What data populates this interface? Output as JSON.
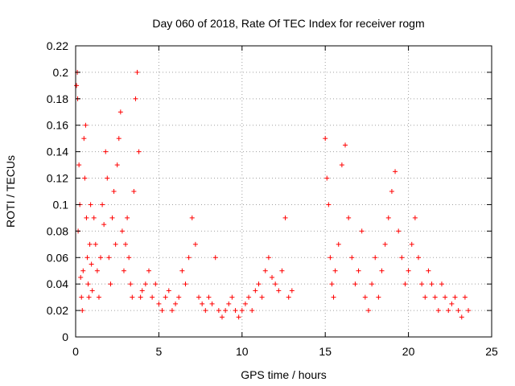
{
  "chart_data": {
    "type": "scatter",
    "title": "Day 060 of 2018, Rate Of TEC Index for receiver rogm",
    "xlabel": "GPS time / hours",
    "ylabel": "ROTI / TECUs",
    "xlim": [
      0,
      25
    ],
    "ylim": [
      0,
      0.22
    ],
    "xticks": [
      0,
      5,
      10,
      15,
      20,
      25
    ],
    "xtick_labels": [
      "0",
      "5",
      "10",
      "15",
      "20",
      "25"
    ],
    "yticks": [
      0,
      0.02,
      0.04,
      0.06,
      0.08,
      0.1,
      0.12,
      0.14,
      0.16,
      0.18,
      0.2,
      0.22
    ],
    "ytick_labels": [
      "0",
      "0.02",
      "0.04",
      "0.06",
      "0.08",
      "0.1",
      "0.12",
      "0.14",
      "0.16",
      "0.18",
      "0.2",
      "0.22"
    ],
    "grid": true,
    "legend": "none",
    "marker": "+",
    "color": "#ff0000",
    "series": [
      {
        "values": [
          [
            0.05,
            0.19
          ],
          [
            0.1,
            0.2
          ],
          [
            0.12,
            0.18
          ],
          [
            0.15,
            0.08
          ],
          [
            0.2,
            0.13
          ],
          [
            0.25,
            0.1
          ],
          [
            0.3,
            0.045
          ],
          [
            0.35,
            0.03
          ],
          [
            0.4,
            0.02
          ],
          [
            0.45,
            0.05
          ],
          [
            0.5,
            0.15
          ],
          [
            0.55,
            0.12
          ],
          [
            0.6,
            0.16
          ],
          [
            0.65,
            0.09
          ],
          [
            0.7,
            0.06
          ],
          [
            0.75,
            0.04
          ],
          [
            0.8,
            0.03
          ],
          [
            0.85,
            0.07
          ],
          [
            0.9,
            0.1
          ],
          [
            0.95,
            0.055
          ],
          [
            1.0,
            0.035
          ],
          [
            1.1,
            0.09
          ],
          [
            1.2,
            0.07
          ],
          [
            1.3,
            0.05
          ],
          [
            1.4,
            0.03
          ],
          [
            1.5,
            0.06
          ],
          [
            1.6,
            0.1
          ],
          [
            1.7,
            0.085
          ],
          [
            1.8,
            0.14
          ],
          [
            1.9,
            0.12
          ],
          [
            2.0,
            0.06
          ],
          [
            2.1,
            0.04
          ],
          [
            2.2,
            0.09
          ],
          [
            2.3,
            0.11
          ],
          [
            2.4,
            0.07
          ],
          [
            2.5,
            0.13
          ],
          [
            2.6,
            0.15
          ],
          [
            2.7,
            0.17
          ],
          [
            2.8,
            0.08
          ],
          [
            2.9,
            0.05
          ],
          [
            3.0,
            0.07
          ],
          [
            3.1,
            0.09
          ],
          [
            3.2,
            0.06
          ],
          [
            3.3,
            0.04
          ],
          [
            3.4,
            0.03
          ],
          [
            3.5,
            0.11
          ],
          [
            3.6,
            0.18
          ],
          [
            3.7,
            0.2
          ],
          [
            3.8,
            0.14
          ],
          [
            3.9,
            0.03
          ],
          [
            4.0,
            0.035
          ],
          [
            4.2,
            0.04
          ],
          [
            4.4,
            0.05
          ],
          [
            4.6,
            0.03
          ],
          [
            4.8,
            0.04
          ],
          [
            5.0,
            0.025
          ],
          [
            5.2,
            0.02
          ],
          [
            5.4,
            0.03
          ],
          [
            5.6,
            0.035
          ],
          [
            5.8,
            0.02
          ],
          [
            6.0,
            0.025
          ],
          [
            6.2,
            0.03
          ],
          [
            6.4,
            0.05
          ],
          [
            6.6,
            0.04
          ],
          [
            6.8,
            0.06
          ],
          [
            7.0,
            0.09
          ],
          [
            7.2,
            0.07
          ],
          [
            7.4,
            0.03
          ],
          [
            7.6,
            0.025
          ],
          [
            7.8,
            0.02
          ],
          [
            8.0,
            0.03
          ],
          [
            8.2,
            0.025
          ],
          [
            8.4,
            0.06
          ],
          [
            8.6,
            0.02
          ],
          [
            8.8,
            0.015
          ],
          [
            9.0,
            0.02
          ],
          [
            9.2,
            0.025
          ],
          [
            9.4,
            0.03
          ],
          [
            9.6,
            0.02
          ],
          [
            9.8,
            0.015
          ],
          [
            10.0,
            0.02
          ],
          [
            10.2,
            0.025
          ],
          [
            10.4,
            0.03
          ],
          [
            10.6,
            0.02
          ],
          [
            10.8,
            0.035
          ],
          [
            11.0,
            0.04
          ],
          [
            11.2,
            0.03
          ],
          [
            11.4,
            0.05
          ],
          [
            11.6,
            0.06
          ],
          [
            11.8,
            0.045
          ],
          [
            12.0,
            0.04
          ],
          [
            12.2,
            0.035
          ],
          [
            12.4,
            0.05
          ],
          [
            12.6,
            0.09
          ],
          [
            12.8,
            0.03
          ],
          [
            13.0,
            0.035
          ],
          [
            15.0,
            0.15
          ],
          [
            15.1,
            0.12
          ],
          [
            15.2,
            0.1
          ],
          [
            15.3,
            0.06
          ],
          [
            15.4,
            0.04
          ],
          [
            15.5,
            0.03
          ],
          [
            15.6,
            0.05
          ],
          [
            15.8,
            0.07
          ],
          [
            16.0,
            0.13
          ],
          [
            16.2,
            0.145
          ],
          [
            16.4,
            0.09
          ],
          [
            16.6,
            0.06
          ],
          [
            16.8,
            0.04
          ],
          [
            17.0,
            0.05
          ],
          [
            17.2,
            0.08
          ],
          [
            17.4,
            0.03
          ],
          [
            17.6,
            0.02
          ],
          [
            17.8,
            0.04
          ],
          [
            18.0,
            0.06
          ],
          [
            18.2,
            0.03
          ],
          [
            18.4,
            0.05
          ],
          [
            18.6,
            0.07
          ],
          [
            18.8,
            0.09
          ],
          [
            19.0,
            0.11
          ],
          [
            19.2,
            0.125
          ],
          [
            19.4,
            0.08
          ],
          [
            19.6,
            0.06
          ],
          [
            19.8,
            0.04
          ],
          [
            20.0,
            0.05
          ],
          [
            20.2,
            0.07
          ],
          [
            20.4,
            0.09
          ],
          [
            20.6,
            0.06
          ],
          [
            20.8,
            0.04
          ],
          [
            21.0,
            0.03
          ],
          [
            21.2,
            0.05
          ],
          [
            21.4,
            0.04
          ],
          [
            21.6,
            0.03
          ],
          [
            21.8,
            0.02
          ],
          [
            22.0,
            0.04
          ],
          [
            22.2,
            0.03
          ],
          [
            22.4,
            0.02
          ],
          [
            22.6,
            0.025
          ],
          [
            22.8,
            0.03
          ],
          [
            23.0,
            0.02
          ],
          [
            23.2,
            0.015
          ],
          [
            23.4,
            0.03
          ],
          [
            23.6,
            0.02
          ]
        ]
      }
    ]
  }
}
